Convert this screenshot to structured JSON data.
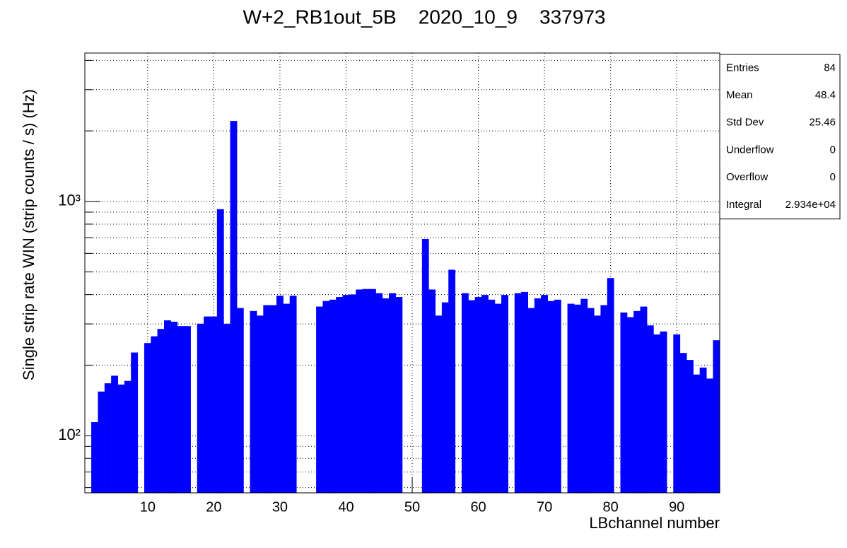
{
  "chart_data": {
    "type": "histogram",
    "title": "W+2_RB1out_5B    2020_10_9    337973",
    "x_label": "LBchannel number",
    "y_label": "Single strip rate WIN (strip counts / s) (Hz)",
    "bins": [
      0.5,
      1.5,
      2.5,
      3.5,
      4.5,
      5.5,
      6.5,
      7.5,
      8.5,
      9.5,
      10.5,
      11.5,
      12.5,
      13.5,
      14.5,
      15.5,
      16.5,
      17.5,
      18.5,
      19.5,
      20.5,
      21.5,
      22.5,
      23.5,
      24.5,
      25.5,
      26.5,
      27.5,
      28.5,
      29.5,
      30.5,
      31.5,
      32.5,
      33.5,
      34.5,
      35.5,
      36.5,
      37.5,
      38.5,
      39.5,
      40.5,
      41.5,
      42.5,
      43.5,
      44.5,
      45.5,
      46.5,
      47.5,
      48.5,
      49.5,
      50.5,
      51.5,
      52.5,
      53.5,
      54.5,
      55.5,
      56.5,
      57.5,
      58.5,
      59.5,
      60.5,
      61.5,
      62.5,
      63.5,
      64.5,
      65.5,
      66.5,
      67.5,
      68.5,
      69.5,
      70.5,
      71.5,
      72.5,
      73.5,
      74.5,
      75.5,
      76.5,
      77.5,
      78.5,
      79.5,
      80.5,
      81.5,
      82.5,
      83.5,
      84.5,
      85.5,
      86.5,
      87.5,
      88.5,
      89.5,
      90.5,
      91.5,
      92.5,
      93.5,
      94.5,
      95.5,
      96.5
    ],
    "values": [
      0,
      114,
      154,
      167,
      180,
      165,
      171,
      226,
      0,
      248,
      265,
      285,
      310,
      306,
      293,
      293,
      0,
      300,
      322,
      322,
      925,
      300,
      2200,
      350,
      0,
      340,
      325,
      360,
      360,
      395,
      365,
      395,
      0,
      0,
      0,
      355,
      375,
      380,
      390,
      398,
      400,
      420,
      422,
      422,
      405,
      385,
      405,
      390,
      0,
      0,
      0,
      690,
      420,
      325,
      370,
      510,
      0,
      405,
      378,
      390,
      398,
      380,
      365,
      398,
      0,
      405,
      410,
      350,
      385,
      398,
      375,
      380,
      0,
      365,
      362,
      383,
      350,
      325,
      360,
      470,
      0,
      335,
      320,
      340,
      355,
      295,
      270,
      278,
      0,
      270,
      225,
      210,
      182,
      195,
      175,
      255
    ],
    "color": "#0000ff",
    "xlim": [
      0.5,
      96.5
    ],
    "xticks": [
      10,
      20,
      30,
      40,
      50,
      60,
      70,
      80,
      90
    ],
    "ylim": [
      57,
      4300
    ],
    "log_y": true,
    "yticks": [
      {
        "value": 100,
        "label": "10²"
      },
      {
        "value": 1000,
        "label": "10³"
      }
    ],
    "yminor_ticks": [
      60,
      70,
      80,
      90,
      200,
      300,
      400,
      500,
      600,
      700,
      800,
      900,
      2000,
      3000,
      4000
    ],
    "grid": true,
    "stats": [
      {
        "label": "Entries",
        "value": 84
      },
      {
        "label": "Mean",
        "value": 48.4
      },
      {
        "label": "Std Dev",
        "value": 25.46
      },
      {
        "label": "Underflow",
        "value": 0
      },
      {
        "label": "Overflow",
        "value": 0
      },
      {
        "label": "Integral",
        "value": {
          "value": 29340,
          "label": "2.934e+04"
        }
      }
    ]
  }
}
